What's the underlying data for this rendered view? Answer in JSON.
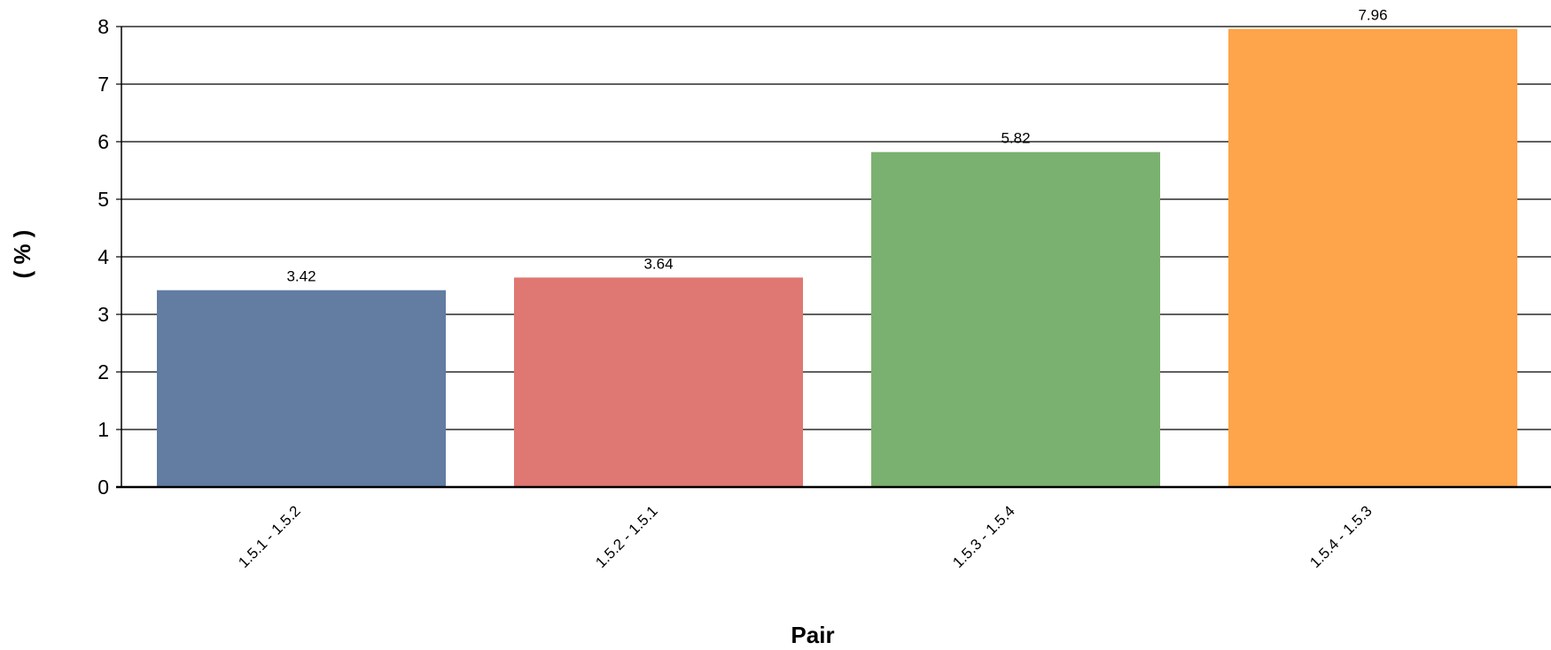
{
  "chart_data": {
    "type": "bar",
    "title": "",
    "xlabel": "Pair",
    "ylabel": "( % )",
    "categories": [
      "1.5.1 - 1.5.2",
      "1.5.2 - 1.5.1",
      "1.5.3 - 1.5.4",
      "1.5.4 - 1.5.3"
    ],
    "values": [
      3.42,
      3.64,
      5.82,
      7.96
    ],
    "data_labels": [
      "3.42",
      "3.64",
      "5.82",
      "7.96"
    ],
    "bar_colors": [
      "#627ca2",
      "#df7772",
      "#7bb170",
      "#fea44a"
    ],
    "ylim": [
      0,
      8
    ],
    "yticks": [
      "0",
      "1",
      "2",
      "3",
      "4",
      "5",
      "6",
      "7",
      "8"
    ],
    "grid": true,
    "legend": "none"
  }
}
